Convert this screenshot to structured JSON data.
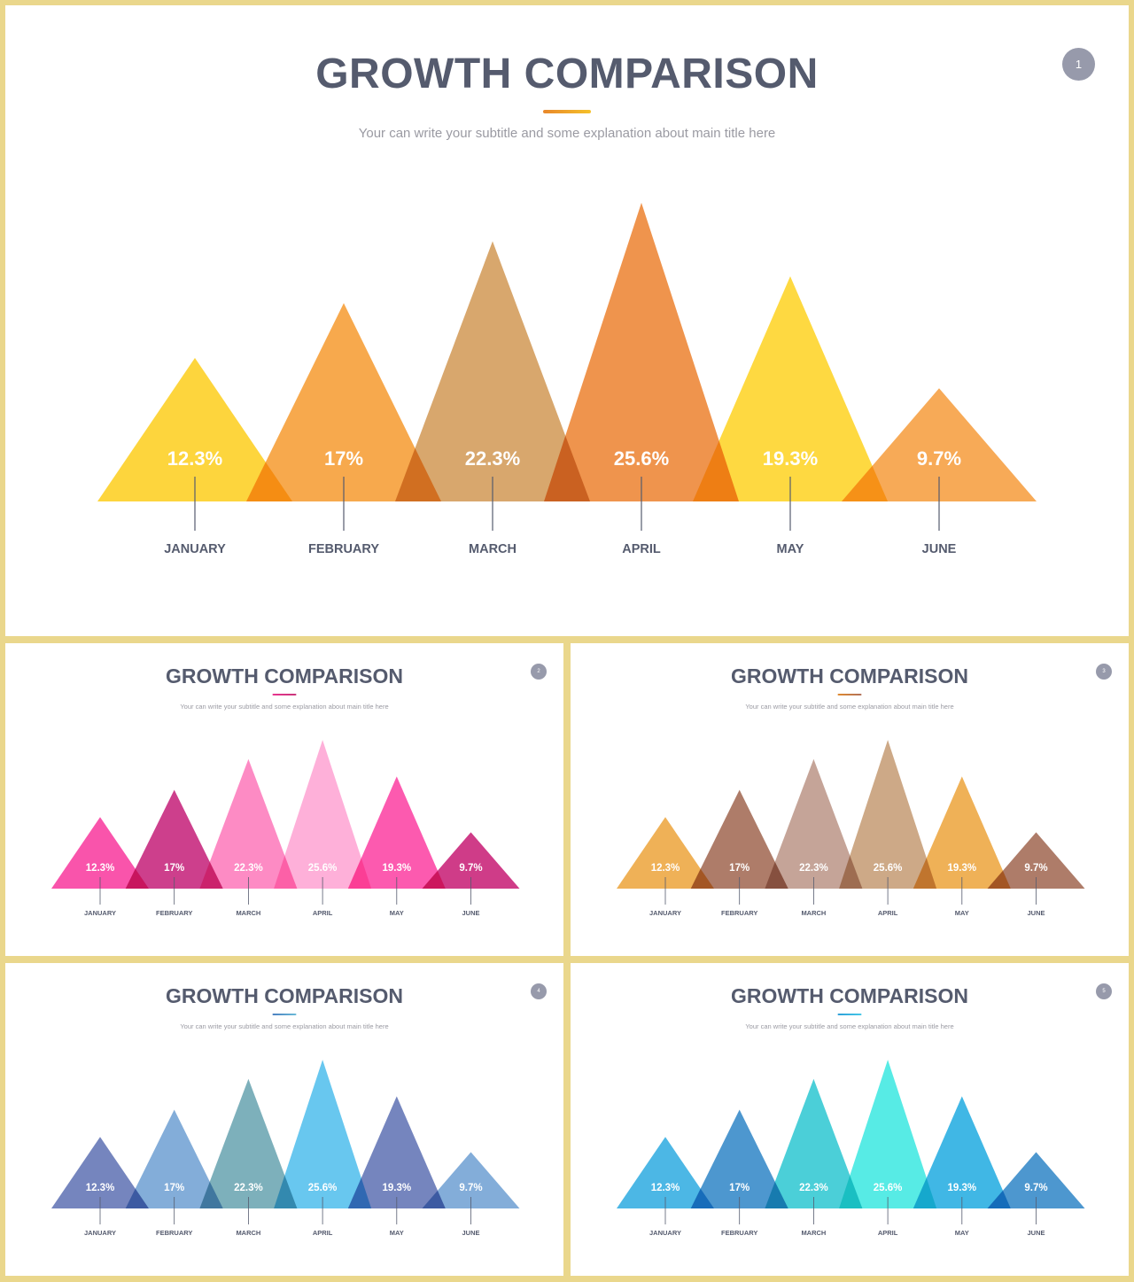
{
  "slides": [
    {
      "title": "GROWTH COMPARISON",
      "subtitle": "Your can write your subtitle and some explanation about main title here",
      "page_number": "1",
      "accent_gradient": [
        "#e8872a",
        "#f5c12a"
      ],
      "colors": [
        "#fdd22e",
        "#f6a33f",
        "#d5a062",
        "#ee8c3f",
        "#fed633",
        "#f6a44a"
      ]
    },
    {
      "title": "GROWTH COMPARISON",
      "subtitle": "Your can write your subtitle and some explanation about main title here",
      "page_number": "2",
      "accent_gradient": [
        "#e8358f",
        "#c9357a"
      ],
      "colors": [
        "#f947a5",
        "#c93083",
        "#fd82c0",
        "#feaad6",
        "#fc4da9",
        "#cb2d7f"
      ]
    },
    {
      "title": "GROWTH COMPARISON",
      "subtitle": "Your can write your subtitle and some explanation about main title here",
      "page_number": "3",
      "accent_gradient": [
        "#e08a2e",
        "#b0705a"
      ],
      "colors": [
        "#eeab4a",
        "#a8725e",
        "#c19d90",
        "#c9a27e",
        "#eeab4a",
        "#a8725e"
      ]
    },
    {
      "title": "GROWTH COMPARISON",
      "subtitle": "Your can write your subtitle and some explanation about main title here",
      "page_number": "4",
      "accent_gradient": [
        "#4a7fc0",
        "#6bbbd8"
      ],
      "colors": [
        "#6b7cb9",
        "#7aa7d6",
        "#73aab6",
        "#5dc3ee",
        "#6b7cb9",
        "#7aa7d6"
      ]
    },
    {
      "title": "GROWTH COMPARISON",
      "subtitle": "Your can write your subtitle and some explanation about main title here",
      "page_number": "5",
      "accent_gradient": [
        "#2e9fd8",
        "#45c8e8"
      ],
      "colors": [
        "#3eb2e3",
        "#3f8fcb",
        "#3dcbd5",
        "#4aeae3",
        "#32b2e3",
        "#3f8fcb"
      ]
    }
  ],
  "chart_data": [
    {
      "type": "triangle-bar",
      "categories": [
        "JANUARY",
        "FEBRUARY",
        "MARCH",
        "APRIL",
        "MAY",
        "JUNE"
      ],
      "values": [
        12.3,
        17,
        22.3,
        25.6,
        19.3,
        9.7
      ],
      "value_labels": [
        "12.3%",
        "17%",
        "22.3%",
        "25.6%",
        "19.3%",
        "9.7%"
      ],
      "peaks": [
        12.3,
        17,
        22.3,
        25.6,
        19.3,
        9.7
      ],
      "unit": "%",
      "grid": false,
      "legend": "none"
    },
    {
      "type": "triangle-bar",
      "categories": [
        "JANUARY",
        "FEBRUARY",
        "MARCH",
        "APRIL",
        "MAY",
        "JUNE"
      ],
      "values": [
        12.3,
        17,
        22.3,
        25.6,
        19.3,
        9.7
      ],
      "value_labels": [
        "12.3%",
        "17%",
        "22.3%",
        "25.6%",
        "19.3%",
        "9.7%"
      ],
      "peaks": [
        12.3,
        17,
        22.3,
        25.6,
        19.3,
        9.7
      ],
      "unit": "%",
      "grid": false,
      "legend": "none"
    },
    {
      "type": "triangle-bar",
      "categories": [
        "JANUARY",
        "FEBRUARY",
        "MARCH",
        "APRIL",
        "MAY",
        "JUNE"
      ],
      "values": [
        12.3,
        17,
        22.3,
        25.6,
        19.3,
        9.7
      ],
      "value_labels": [
        "12.3%",
        "17%",
        "22.3%",
        "25.6%",
        "19.3%",
        "9.7%"
      ],
      "peaks": [
        12.3,
        17,
        22.3,
        25.6,
        19.3,
        9.7
      ],
      "unit": "%",
      "grid": false,
      "legend": "none"
    },
    {
      "type": "triangle-bar",
      "categories": [
        "JANUARY",
        "FEBRUARY",
        "MARCH",
        "APRIL",
        "MAY",
        "JUNE"
      ],
      "values": [
        12.3,
        17,
        22.3,
        25.6,
        19.3,
        9.7
      ],
      "value_labels": [
        "12.3%",
        "17%",
        "22.3%",
        "25.6%",
        "19.3%",
        "9.7%"
      ],
      "peaks": [
        12.3,
        17,
        22.3,
        25.6,
        19.3,
        9.7
      ],
      "unit": "%",
      "grid": false,
      "legend": "none"
    },
    {
      "type": "triangle-bar",
      "categories": [
        "JANUARY",
        "FEBRUARY",
        "MARCH",
        "APRIL",
        "MAY",
        "JUNE"
      ],
      "values": [
        12.3,
        17,
        22.3,
        25.6,
        19.3,
        9.7
      ],
      "value_labels": [
        "12.3%",
        "17%",
        "22.3%",
        "25.6%",
        "19.3%",
        "9.7%"
      ],
      "peaks": [
        12.3,
        17,
        22.3,
        25.6,
        19.3,
        9.7
      ],
      "unit": "%",
      "grid": false,
      "legend": "none"
    }
  ]
}
